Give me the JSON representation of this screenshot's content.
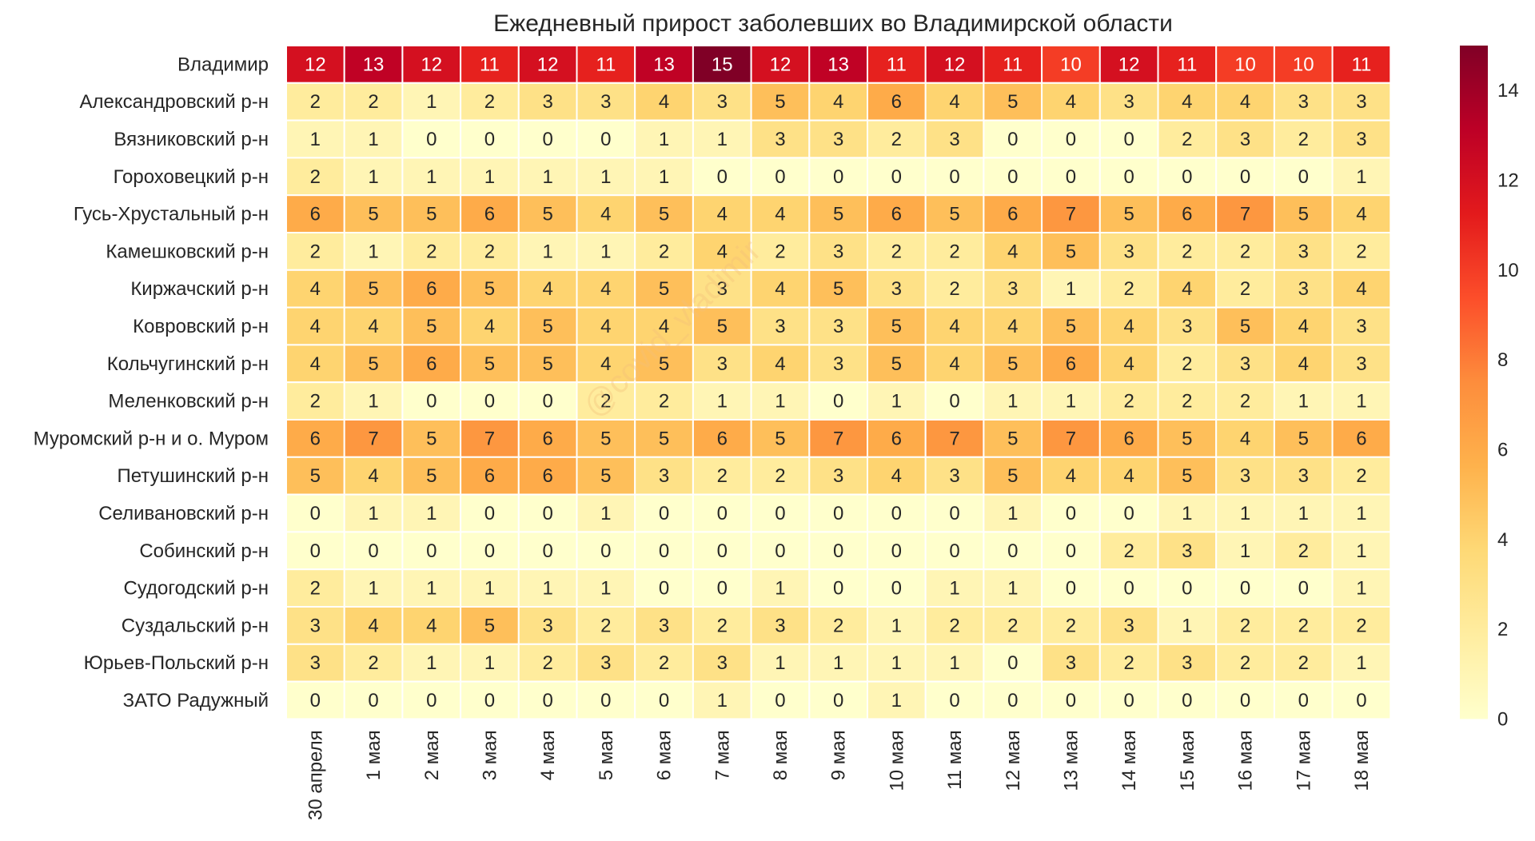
{
  "chart_data": {
    "type": "heatmap",
    "title": "Ежедневный прирост заболевших во Владимирской области",
    "watermark": "@covid_vladimir",
    "columns": [
      "30 апреля",
      "1 мая",
      "2 мая",
      "3 мая",
      "4 мая",
      "5 мая",
      "6 мая",
      "7 мая",
      "8 мая",
      "9 мая",
      "10 мая",
      "11 мая",
      "12 мая",
      "13 мая",
      "14 мая",
      "15 мая",
      "16 мая",
      "17 мая",
      "18 мая"
    ],
    "rows": [
      "Владимир",
      "Александровский р-н",
      "Вязниковский р-н",
      "Гороховецкий р-н",
      "Гусь-Хрустальный р-н",
      "Камешковский р-н",
      "Киржачский р-н",
      "Ковровский р-н",
      "Кольчугинский р-н",
      "Меленковский р-н",
      "Муромский р-н и о. Муром",
      "Петушинский р-н",
      "Селивановский р-н",
      "Собинский р-н",
      "Судогодский р-н",
      "Суздальский р-н",
      "Юрьев-Польский р-н",
      "ЗАТО Радужный"
    ],
    "values": [
      [
        12,
        13,
        12,
        11,
        12,
        11,
        13,
        15,
        12,
        13,
        11,
        12,
        11,
        10,
        12,
        11,
        10,
        10,
        11
      ],
      [
        2,
        2,
        1,
        2,
        3,
        3,
        4,
        3,
        5,
        4,
        6,
        4,
        5,
        4,
        3,
        4,
        4,
        3,
        3
      ],
      [
        1,
        1,
        0,
        0,
        0,
        0,
        1,
        1,
        3,
        3,
        2,
        3,
        0,
        0,
        0,
        2,
        3,
        2,
        3
      ],
      [
        2,
        1,
        1,
        1,
        1,
        1,
        1,
        0,
        0,
        0,
        0,
        0,
        0,
        0,
        0,
        0,
        0,
        0,
        1
      ],
      [
        6,
        5,
        5,
        6,
        5,
        4,
        5,
        4,
        4,
        5,
        6,
        5,
        6,
        7,
        5,
        6,
        7,
        5,
        4
      ],
      [
        2,
        1,
        2,
        2,
        1,
        1,
        2,
        4,
        2,
        3,
        2,
        2,
        4,
        5,
        3,
        2,
        2,
        3,
        2
      ],
      [
        4,
        5,
        6,
        5,
        4,
        4,
        5,
        3,
        4,
        5,
        3,
        2,
        3,
        1,
        2,
        4,
        2,
        3,
        4
      ],
      [
        4,
        4,
        5,
        4,
        5,
        4,
        4,
        5,
        3,
        3,
        5,
        4,
        4,
        5,
        4,
        3,
        5,
        4,
        3
      ],
      [
        4,
        5,
        6,
        5,
        5,
        4,
        5,
        3,
        4,
        3,
        5,
        4,
        5,
        6,
        4,
        2,
        3,
        4,
        3
      ],
      [
        2,
        1,
        0,
        0,
        0,
        2,
        2,
        1,
        1,
        0,
        1,
        0,
        1,
        1,
        2,
        2,
        2,
        1,
        1
      ],
      [
        6,
        7,
        5,
        7,
        6,
        5,
        5,
        6,
        5,
        7,
        6,
        7,
        5,
        7,
        6,
        5,
        4,
        5,
        6
      ],
      [
        5,
        4,
        5,
        6,
        6,
        5,
        3,
        2,
        2,
        3,
        4,
        3,
        5,
        4,
        4,
        5,
        3,
        3,
        2
      ],
      [
        0,
        1,
        1,
        0,
        0,
        1,
        0,
        0,
        0,
        0,
        0,
        0,
        1,
        0,
        0,
        1,
        1,
        1,
        1
      ],
      [
        0,
        0,
        0,
        0,
        0,
        0,
        0,
        0,
        0,
        0,
        0,
        0,
        0,
        0,
        2,
        3,
        1,
        2,
        1
      ],
      [
        2,
        1,
        1,
        1,
        1,
        1,
        0,
        0,
        1,
        0,
        0,
        1,
        1,
        0,
        0,
        0,
        0,
        0,
        1
      ],
      [
        3,
        4,
        4,
        5,
        3,
        2,
        3,
        2,
        3,
        2,
        1,
        2,
        2,
        2,
        3,
        1,
        2,
        2,
        2
      ],
      [
        3,
        2,
        1,
        1,
        2,
        3,
        2,
        3,
        1,
        1,
        1,
        1,
        0,
        3,
        2,
        3,
        2,
        2,
        1
      ],
      [
        0,
        0,
        0,
        0,
        0,
        0,
        0,
        1,
        0,
        0,
        1,
        0,
        0,
        0,
        0,
        0,
        0,
        0,
        0
      ]
    ],
    "vmin": 0,
    "vmax": 15,
    "colormap": "YlOrRd",
    "colorbar_ticks": [
      0,
      2,
      4,
      6,
      8,
      10,
      12,
      14
    ]
  }
}
